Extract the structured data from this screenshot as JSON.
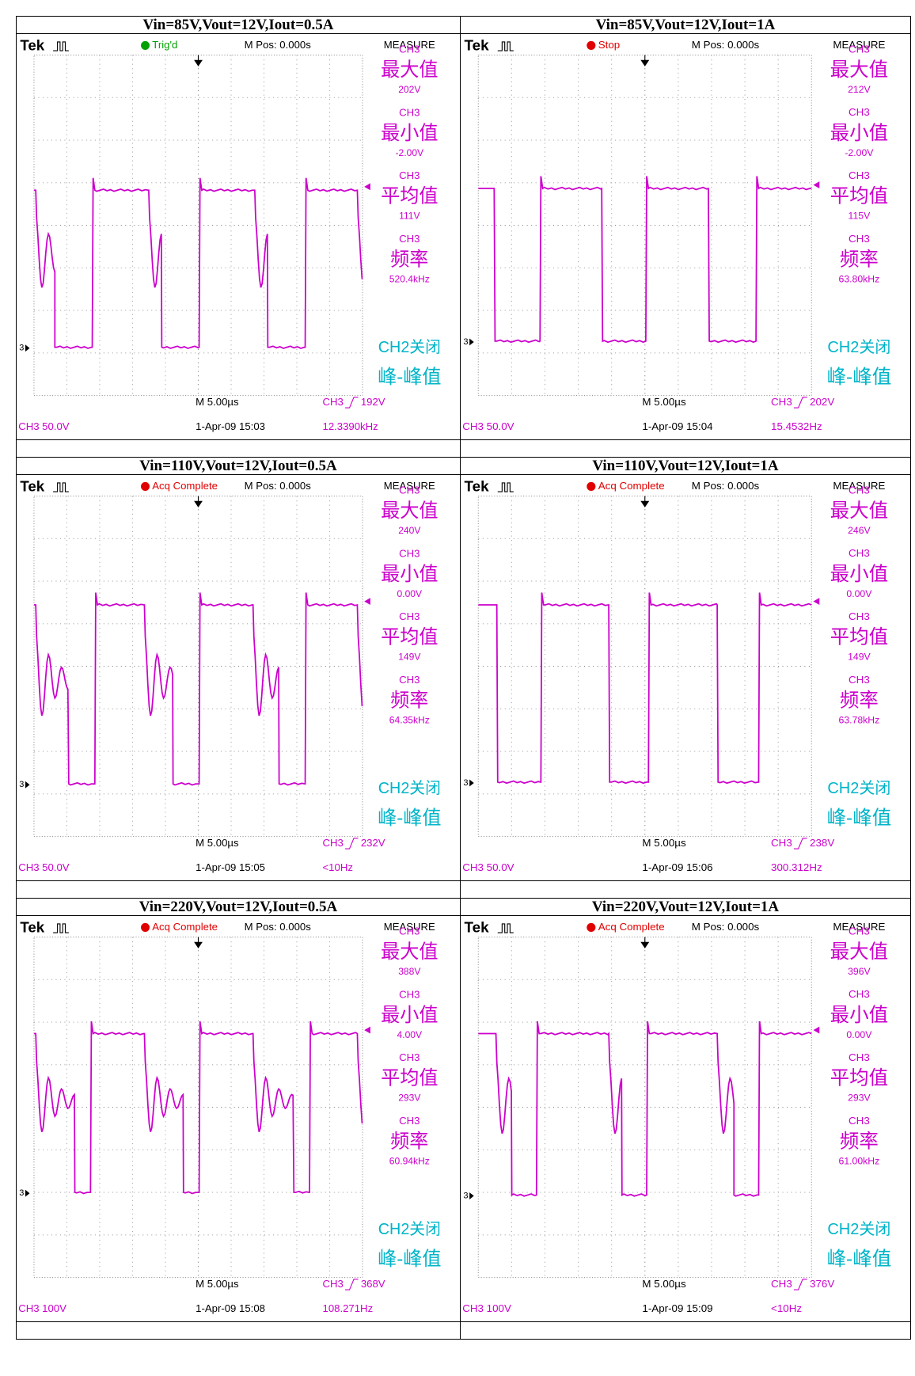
{
  "panels": [
    {
      "title": "Vin=85V,Vout=12V,Iout=0.5A",
      "brand": "Tek",
      "status": "Trig'd",
      "status_color": "#00a000",
      "position": "M Pos: 0.000s",
      "measure_header": "MEASURE",
      "measurements": [
        {
          "channel": "CH3",
          "name": "最大值",
          "value": "202V"
        },
        {
          "channel": "CH3",
          "name": "最小值",
          "value": "-2.00V"
        },
        {
          "channel": "CH3",
          "name": "平均值",
          "value": "111V"
        },
        {
          "channel": "CH3",
          "name": "频率",
          "value": "520.4kHz"
        }
      ],
      "ch2": "CH2关闭",
      "ch2_measure": "峰-峰值",
      "timebase": "M 5.00µs",
      "trigger_source": "CH3",
      "trigger_level": "192V",
      "scale": "CH3 50.0V",
      "datetime": "1-Apr-09 15:03",
      "frequency": "12.3390kHz",
      "marker": "3"
    },
    {
      "title": "Vin=85V,Vout=12V,Iout=1A",
      "brand": "Tek",
      "status": "Stop",
      "status_color": "#e00000",
      "position": "M Pos: 0.000s",
      "measure_header": "MEASURE",
      "measurements": [
        {
          "channel": "CH3",
          "name": "最大值",
          "value": "212V"
        },
        {
          "channel": "CH3",
          "name": "最小值",
          "value": "-2.00V"
        },
        {
          "channel": "CH3",
          "name": "平均值",
          "value": "115V"
        },
        {
          "channel": "CH3",
          "name": "频率",
          "value": "63.80kHz"
        }
      ],
      "ch2": "CH2关闭",
      "ch2_measure": "峰-峰值",
      "timebase": "M 5.00µs",
      "trigger_source": "CH3",
      "trigger_level": "202V",
      "scale": "CH3 50.0V",
      "datetime": "1-Apr-09 15:04",
      "frequency": "15.4532Hz",
      "marker": "3"
    },
    {
      "title": "Vin=110V,Vout=12V,Iout=0.5A",
      "brand": "Tek",
      "status": "Acq Complete",
      "status_color": "#e00000",
      "position": "M Pos: 0.000s",
      "measure_header": "MEASURE",
      "measurements": [
        {
          "channel": "CH3",
          "name": "最大值",
          "value": "240V"
        },
        {
          "channel": "CH3",
          "name": "最小值",
          "value": "0.00V"
        },
        {
          "channel": "CH3",
          "name": "平均值",
          "value": "149V"
        },
        {
          "channel": "CH3",
          "name": "频率",
          "value": "64.35kHz"
        }
      ],
      "ch2": "CH2关闭",
      "ch2_measure": "峰-峰值",
      "timebase": "M 5.00µs",
      "trigger_source": "CH3",
      "trigger_level": "232V",
      "scale": "CH3 50.0V",
      "datetime": "1-Apr-09 15:05",
      "frequency": "<10Hz",
      "marker": "3"
    },
    {
      "title": "Vin=110V,Vout=12V,Iout=1A",
      "brand": "Tek",
      "status": "Acq Complete",
      "status_color": "#e00000",
      "position": "M Pos: 0.000s",
      "measure_header": "MEASURE",
      "measurements": [
        {
          "channel": "CH3",
          "name": "最大值",
          "value": "246V"
        },
        {
          "channel": "CH3",
          "name": "最小值",
          "value": "0.00V"
        },
        {
          "channel": "CH3",
          "name": "平均值",
          "value": "149V"
        },
        {
          "channel": "CH3",
          "name": "频率",
          "value": "63.78kHz"
        }
      ],
      "ch2": "CH2关闭",
      "ch2_measure": "峰-峰值",
      "timebase": "M 5.00µs",
      "trigger_source": "CH3",
      "trigger_level": "238V",
      "scale": "CH3 50.0V",
      "datetime": "1-Apr-09 15:06",
      "frequency": "300.312Hz",
      "marker": "3"
    },
    {
      "title": "Vin=220V,Vout=12V,Iout=0.5A",
      "brand": "Tek",
      "status": "Acq Complete",
      "status_color": "#e00000",
      "position": "M Pos: 0.000s",
      "measure_header": "MEASURE",
      "measurements": [
        {
          "channel": "CH3",
          "name": "最大值",
          "value": "388V"
        },
        {
          "channel": "CH3",
          "name": "最小值",
          "value": "4.00V"
        },
        {
          "channel": "CH3",
          "name": "平均值",
          "value": "293V"
        },
        {
          "channel": "CH3",
          "name": "频率",
          "value": "60.94kHz"
        }
      ],
      "ch2": "CH2关闭",
      "ch2_measure": "峰-峰值",
      "timebase": "M 5.00µs",
      "trigger_source": "CH3",
      "trigger_level": "368V",
      "scale": "CH3 100V",
      "datetime": "1-Apr-09 15:08",
      "frequency": "108.271Hz",
      "marker": "3"
    },
    {
      "title": "Vin=220V,Vout=12V,Iout=1A",
      "brand": "Tek",
      "status": "Acq Complete",
      "status_color": "#e00000",
      "position": "M Pos: 0.000s",
      "measure_header": "MEASURE",
      "measurements": [
        {
          "channel": "CH3",
          "name": "最大值",
          "value": "396V"
        },
        {
          "channel": "CH3",
          "name": "最小值",
          "value": "0.00V"
        },
        {
          "channel": "CH3",
          "name": "平均值",
          "value": "293V"
        },
        {
          "channel": "CH3",
          "name": "频率",
          "value": "61.00kHz"
        }
      ],
      "ch2": "CH2关闭",
      "ch2_measure": "峰-峰值",
      "timebase": "M 5.00µs",
      "trigger_source": "CH3",
      "trigger_level": "376V",
      "scale": "CH3 100V",
      "datetime": "1-Apr-09 15:09",
      "frequency": "<10Hz",
      "marker": "3"
    }
  ]
}
